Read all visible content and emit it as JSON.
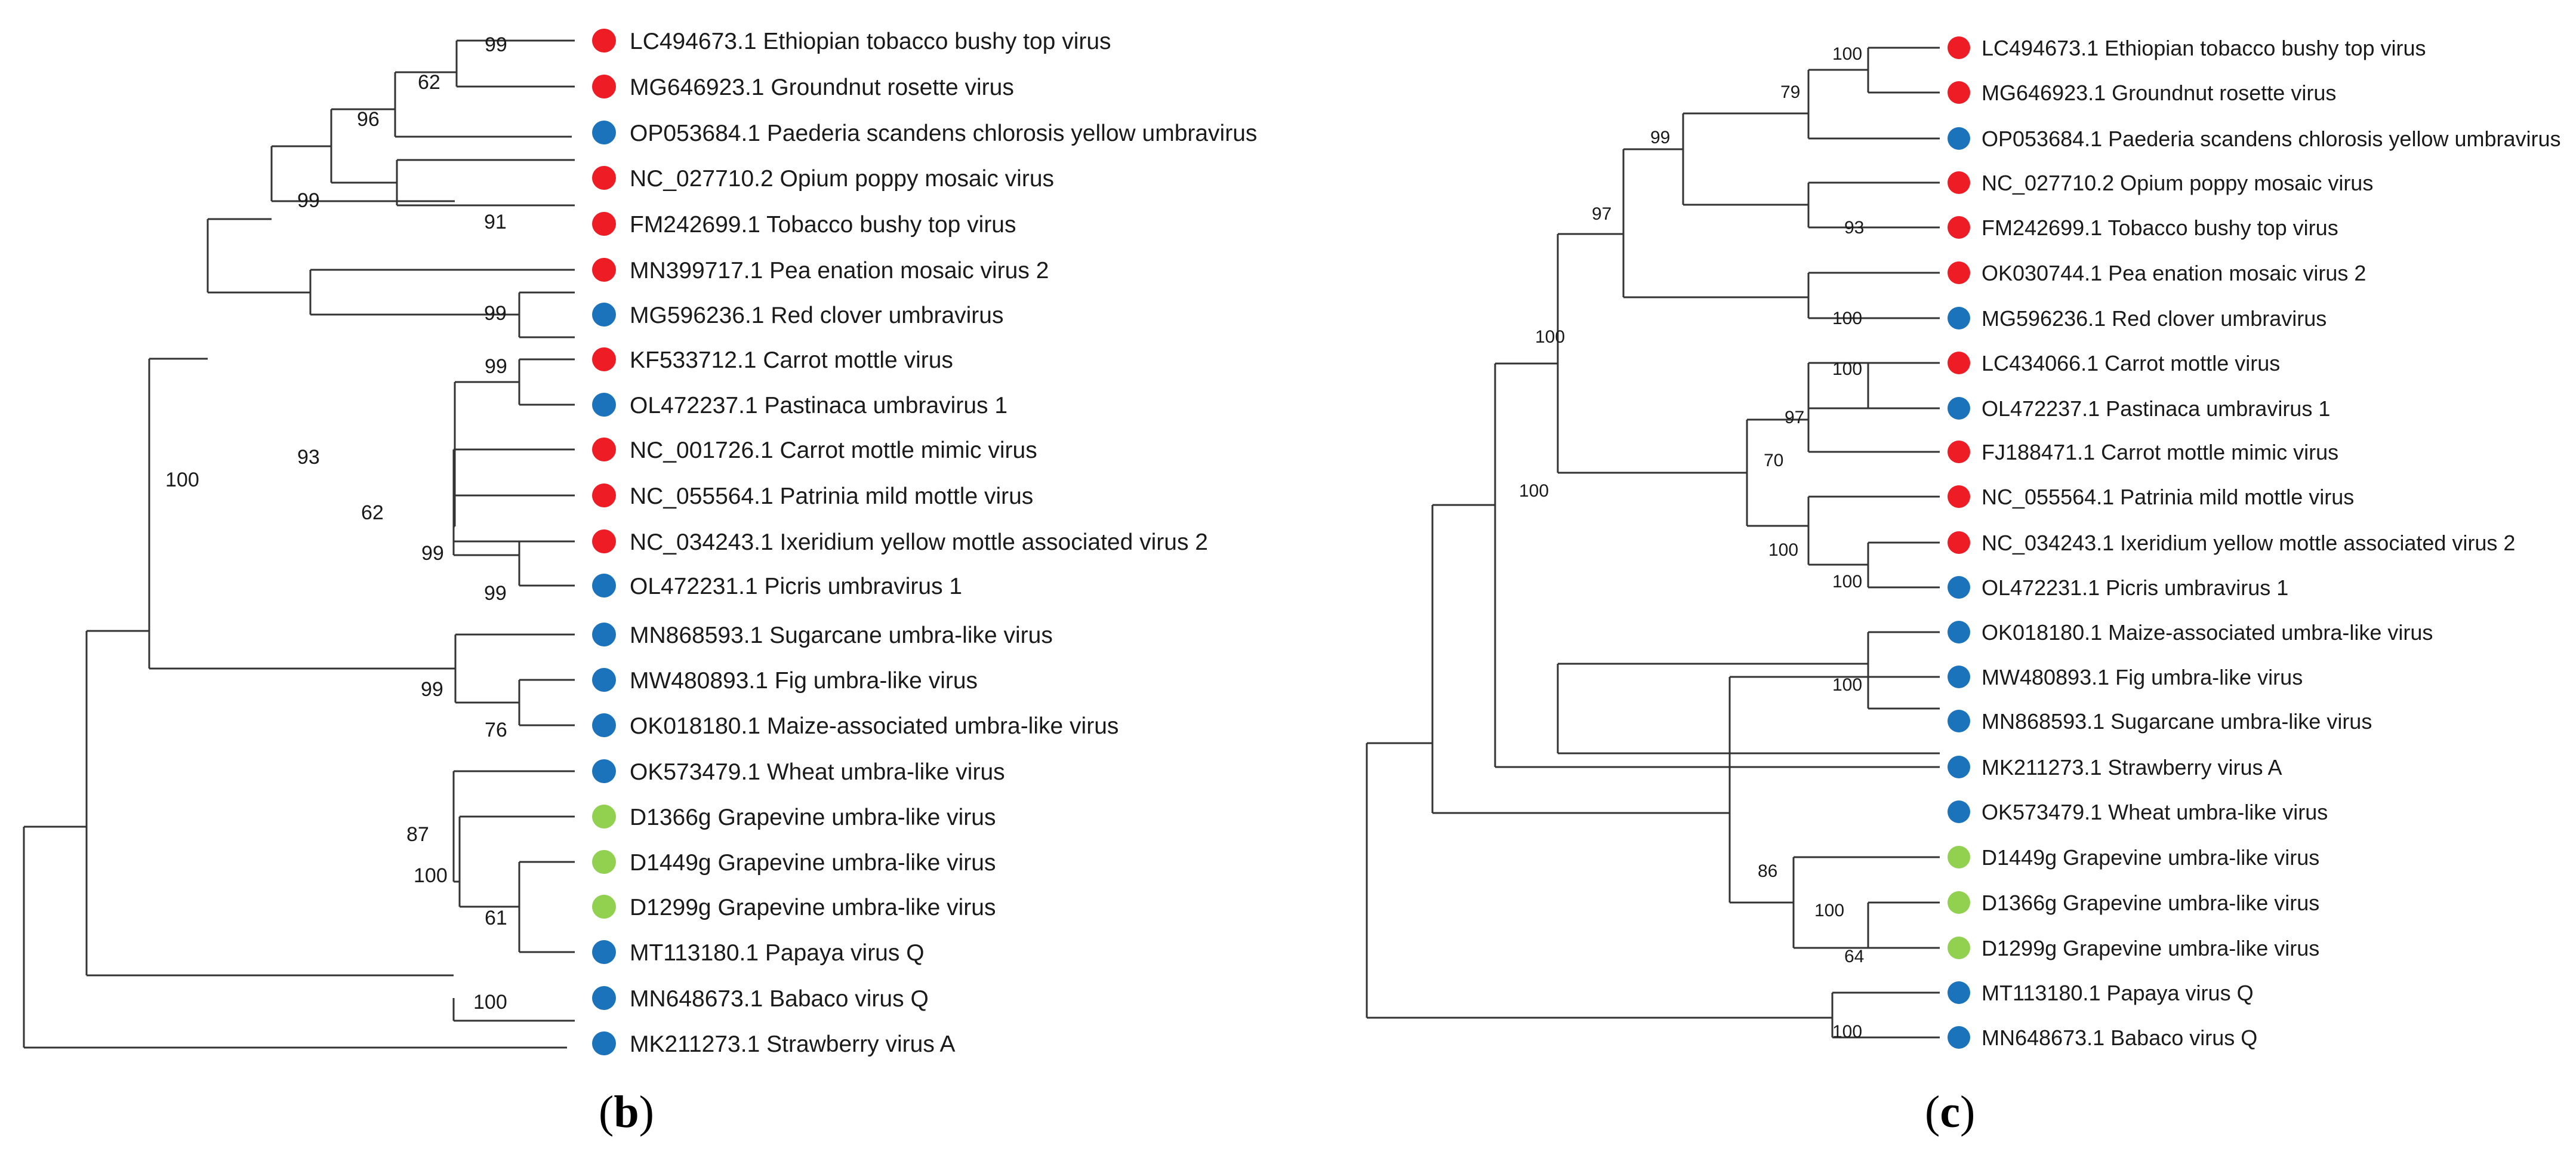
{
  "colors": {
    "red": "#ee1c24",
    "blue": "#1a73bb",
    "green": "#92d050"
  },
  "panels": [
    {
      "id": "b",
      "label_open": "(",
      "label_letter": "b",
      "label_close": ")",
      "leaves": [
        {
          "label": "LC494673.1 Ethiopian tobacco bushy top virus",
          "color": "red"
        },
        {
          "label": "MG646923.1 Groundnut rosette virus",
          "color": "red"
        },
        {
          "label": "OP053684.1 Paederia scandens chlorosis yellow umbravirus",
          "color": "blue"
        },
        {
          "label": "NC_027710.2 Opium poppy mosaic virus",
          "color": "red"
        },
        {
          "label": "FM242699.1 Tobacco bushy top virus",
          "color": "red"
        },
        {
          "label": "MN399717.1 Pea enation mosaic virus 2",
          "color": "red"
        },
        {
          "label": "MG596236.1 Red clover umbravirus",
          "color": "blue"
        },
        {
          "label": "KF533712.1 Carrot mottle virus",
          "color": "red"
        },
        {
          "label": "OL472237.1 Pastinaca umbravirus 1",
          "color": "blue"
        },
        {
          "label": "NC_001726.1 Carrot mottle mimic virus",
          "color": "red"
        },
        {
          "label": "NC_055564.1 Patrinia mild mottle virus",
          "color": "red"
        },
        {
          "label": "NC_034243.1 Ixeridium yellow mottle associated virus 2",
          "color": "red"
        },
        {
          "label": "OL472231.1 Picris umbravirus 1",
          "color": "blue"
        },
        {
          "label": "MN868593.1 Sugarcane umbra-like virus",
          "color": "blue"
        },
        {
          "label": "MW480893.1 Fig umbra-like virus",
          "color": "blue"
        },
        {
          "label": "OK018180.1 Maize-associated umbra-like virus",
          "color": "blue"
        },
        {
          "label": "OK573479.1 Wheat umbra-like virus",
          "color": "blue"
        },
        {
          "label": "D1366g Grapevine umbra-like virus",
          "color": "green"
        },
        {
          "label": "D1449g Grapevine umbra-like virus",
          "color": "green"
        },
        {
          "label": "D1299g Grapevine umbra-like virus",
          "color": "green"
        },
        {
          "label": "MT113180.1 Papaya virus Q",
          "color": "blue"
        },
        {
          "label": "MN648673.1 Babaco virus Q",
          "color": "blue"
        },
        {
          "label": "MK211273.1 Strawberry virus A",
          "color": "blue"
        }
      ],
      "bootstrap": [
        "99",
        "62",
        "96",
        "91",
        "99",
        "99",
        "99",
        "93",
        "62",
        "99",
        "99",
        "100",
        "99",
        "76",
        "87",
        "100",
        "61",
        "100"
      ]
    },
    {
      "id": "c",
      "label_open": "(",
      "label_letter": "c",
      "label_close": ")",
      "leaves": [
        {
          "label": "LC494673.1 Ethiopian tobacco bushy top virus",
          "color": "red"
        },
        {
          "label": "MG646923.1 Groundnut rosette virus",
          "color": "red"
        },
        {
          "label": "OP053684.1 Paederia scandens chlorosis yellow umbravirus",
          "color": "blue"
        },
        {
          "label": "NC_027710.2 Opium poppy mosaic virus",
          "color": "red"
        },
        {
          "label": "FM242699.1 Tobacco bushy top virus",
          "color": "red"
        },
        {
          "label": "OK030744.1 Pea enation mosaic virus 2",
          "color": "red"
        },
        {
          "label": "MG596236.1 Red clover umbravirus",
          "color": "blue"
        },
        {
          "label": "LC434066.1 Carrot mottle virus",
          "color": "red"
        },
        {
          "label": "OL472237.1 Pastinaca umbravirus 1",
          "color": "blue"
        },
        {
          "label": "FJ188471.1 Carrot mottle mimic virus",
          "color": "red"
        },
        {
          "label": "NC_055564.1 Patrinia mild mottle virus",
          "color": "red"
        },
        {
          "label": "NC_034243.1 Ixeridium yellow mottle associated virus 2",
          "color": "red"
        },
        {
          "label": "OL472231.1 Picris umbravirus 1",
          "color": "blue"
        },
        {
          "label": "OK018180.1 Maize-associated umbra-like virus",
          "color": "blue"
        },
        {
          "label": "MW480893.1 Fig umbra-like virus",
          "color": "blue"
        },
        {
          "label": "MN868593.1 Sugarcane umbra-like virus",
          "color": "blue"
        },
        {
          "label": "MK211273.1 Strawberry virus A",
          "color": "blue"
        },
        {
          "label": "OK573479.1 Wheat umbra-like virus",
          "color": "blue"
        },
        {
          "label": "D1449g Grapevine umbra-like virus",
          "color": "green"
        },
        {
          "label": "D1366g Grapevine umbra-like virus",
          "color": "green"
        },
        {
          "label": "D1299g Grapevine umbra-like virus",
          "color": "green"
        },
        {
          "label": "MT113180.1 Papaya virus Q",
          "color": "blue"
        },
        {
          "label": "MN648673.1 Babaco virus Q",
          "color": "blue"
        }
      ],
      "bootstrap": [
        "100",
        "79",
        "99",
        "93",
        "100",
        "97",
        "100",
        "97",
        "70",
        "100",
        "100",
        "100",
        "100",
        "100",
        "86",
        "100",
        "64",
        "100"
      ]
    }
  ]
}
